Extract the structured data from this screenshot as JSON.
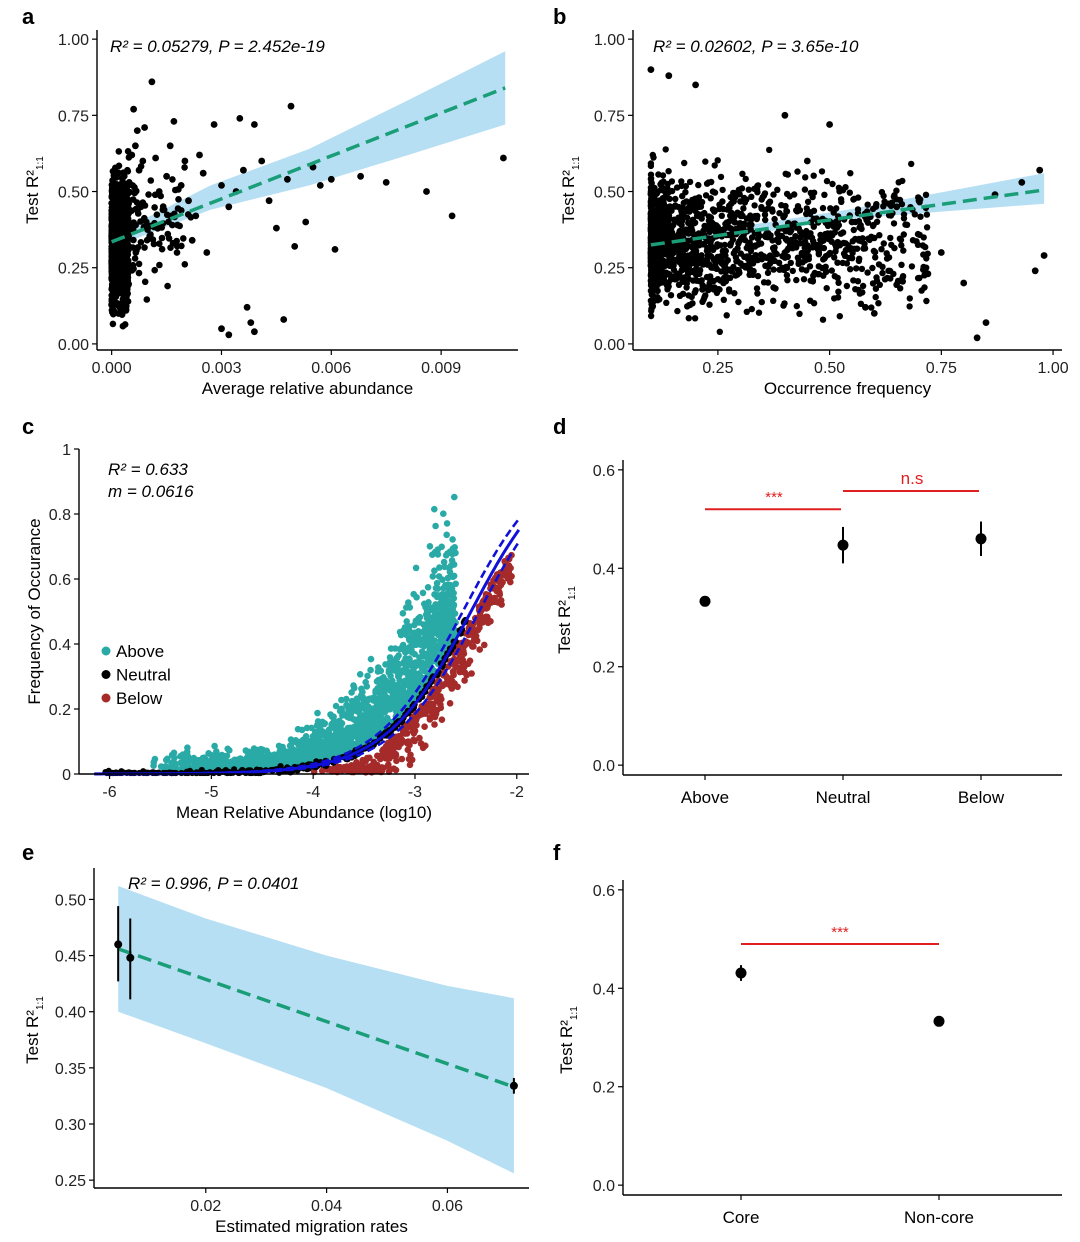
{
  "figure": {
    "panels": {
      "a": {
        "letter": "a",
        "stat_text": "R² = 0.05279, P = 2.452e-19",
        "ylabel_main": "Test R²",
        "ylabel_sub": "1:1"
      },
      "b": {
        "letter": "b",
        "stat_text": "R² = 0.02602, P = 3.65e-10",
        "ylabel_main": "Test R²",
        "ylabel_sub": "1:1"
      },
      "c": {
        "letter": "c",
        "stat_r2": "R² = 0.633",
        "stat_m": "m = 0.0616"
      },
      "d": {
        "letter": "d",
        "ylabel_main": "Test R²",
        "ylabel_sub": "1:1"
      },
      "e": {
        "letter": "e",
        "stat_text": "R² = 0.996, P = 0.0401",
        "ylabel_main": "Test R²",
        "ylabel_sub": "1:1"
      },
      "f": {
        "letter": "f",
        "ylabel_main": "Test R²",
        "ylabel_sub": "1:1"
      }
    },
    "colors": {
      "point": "#000000",
      "fit_line": "#1a9e77",
      "ci_band": "#a9d9f2",
      "above": "#2aaaa6",
      "neutral": "#000000",
      "below": "#a52a2a",
      "neutral_model": "#1010d8",
      "significance": "#e02020"
    }
  },
  "chart_data": [
    {
      "id": "a",
      "type": "scatter",
      "title": "",
      "xlabel": "Average relative abundance",
      "ylabel": "Test R² 1:1",
      "xlim": [
        -0.0004,
        0.0111
      ],
      "ylim": [
        -0.02,
        1.03
      ],
      "xticks": [
        0.0,
        0.003,
        0.006,
        0.009
      ],
      "xtick_labels": [
        "0.000",
        "0.003",
        "0.006",
        "0.009"
      ],
      "yticks": [
        0.0,
        0.25,
        0.5,
        0.75,
        1.0
      ],
      "ytick_labels": [
        "0.00",
        "0.25",
        "0.50",
        "0.75",
        "1.00"
      ],
      "fit": {
        "x": [
          0.0,
          0.01075
        ],
        "y": [
          0.335,
          0.84
        ]
      },
      "ci_band": {
        "x": [
          0.0,
          0.0027,
          0.0054,
          0.0081,
          0.01075
        ],
        "lower": [
          0.315,
          0.44,
          0.52,
          0.62,
          0.72
        ],
        "upper": [
          0.355,
          0.52,
          0.64,
          0.8,
          0.96
        ]
      },
      "points_sample": [
        [
          0.00048,
          0.53
        ],
        [
          0.00055,
          0.62
        ],
        [
          0.0006,
          0.77
        ],
        [
          0.00065,
          0.65
        ],
        [
          0.0007,
          0.7
        ],
        [
          0.00075,
          0.57
        ],
        [
          0.0008,
          0.45
        ],
        [
          0.00085,
          0.6
        ],
        [
          0.0009,
          0.71
        ],
        [
          0.0011,
          0.86
        ],
        [
          0.0012,
          0.61
        ],
        [
          0.0013,
          0.5
        ],
        [
          0.0014,
          0.44
        ],
        [
          0.0015,
          0.55
        ],
        [
          0.0016,
          0.65
        ],
        [
          0.0017,
          0.73
        ],
        [
          0.0018,
          0.39
        ],
        [
          0.0019,
          0.52
        ],
        [
          0.002,
          0.6
        ],
        [
          0.0021,
          0.47
        ],
        [
          0.0022,
          0.34
        ],
        [
          0.0023,
          0.42
        ],
        [
          0.0024,
          0.62
        ],
        [
          0.0025,
          0.56
        ],
        [
          0.0026,
          0.3
        ],
        [
          0.0028,
          0.72
        ],
        [
          0.003,
          0.52
        ],
        [
          0.003,
          0.05
        ],
        [
          0.0032,
          0.45
        ],
        [
          0.0032,
          0.03
        ],
        [
          0.0034,
          0.5
        ],
        [
          0.0035,
          0.74
        ],
        [
          0.0036,
          0.57
        ],
        [
          0.0037,
          0.12
        ],
        [
          0.0038,
          0.07
        ],
        [
          0.0039,
          0.72
        ],
        [
          0.0039,
          0.04
        ],
        [
          0.0041,
          0.6
        ],
        [
          0.0043,
          0.47
        ],
        [
          0.0045,
          0.38
        ],
        [
          0.0047,
          0.08
        ],
        [
          0.0048,
          0.54
        ],
        [
          0.0049,
          0.78
        ],
        [
          0.005,
          0.32
        ],
        [
          0.0053,
          0.4
        ],
        [
          0.0055,
          0.58
        ],
        [
          0.0057,
          0.52
        ],
        [
          0.006,
          0.54
        ],
        [
          0.0061,
          0.31
        ],
        [
          0.0068,
          0.55
        ],
        [
          0.0075,
          0.53
        ],
        [
          0.0086,
          0.5
        ],
        [
          0.0093,
          0.42
        ],
        [
          0.0107,
          0.61
        ]
      ],
      "dense_column": {
        "x_range": [
          0.0,
          0.00045
        ],
        "y_range": [
          0.0,
          0.9
        ]
      }
    },
    {
      "id": "b",
      "type": "scatter",
      "title": "",
      "xlabel": "Occurrence frequency",
      "ylabel": "Test R² 1:1",
      "xlim": [
        0.06,
        1.02
      ],
      "ylim": [
        -0.02,
        1.03
      ],
      "xticks": [
        0.25,
        0.5,
        0.75,
        1.0
      ],
      "xtick_labels": [
        "0.25",
        "0.50",
        "0.75",
        "1.00"
      ],
      "yticks": [
        0.0,
        0.25,
        0.5,
        0.75,
        1.0
      ],
      "ytick_labels": [
        "0.00",
        "0.25",
        "0.50",
        "0.75",
        "1.00"
      ],
      "fit": {
        "x": [
          0.1,
          0.98
        ],
        "y": [
          0.325,
          0.505
        ]
      },
      "ci_band": {
        "x": [
          0.1,
          0.54,
          0.98
        ],
        "lower": [
          0.31,
          0.41,
          0.46
        ],
        "upper": [
          0.34,
          0.44,
          0.56
        ]
      },
      "points_sample": [
        [
          0.1,
          0.9
        ],
        [
          0.14,
          0.88
        ],
        [
          0.2,
          0.85
        ],
        [
          0.4,
          0.75
        ],
        [
          0.45,
          0.6
        ],
        [
          0.5,
          0.72
        ],
        [
          0.55,
          0.4
        ],
        [
          0.58,
          0.12
        ],
        [
          0.6,
          0.1
        ],
        [
          0.65,
          0.45
        ],
        [
          0.7,
          0.47
        ],
        [
          0.72,
          0.23
        ],
        [
          0.75,
          0.3
        ],
        [
          0.8,
          0.2
        ],
        [
          0.83,
          0.02
        ],
        [
          0.85,
          0.07
        ],
        [
          0.87,
          0.49
        ],
        [
          0.93,
          0.53
        ],
        [
          0.96,
          0.24
        ],
        [
          0.97,
          0.57
        ],
        [
          0.98,
          0.29
        ]
      ],
      "cloud": {
        "x_range": [
          0.1,
          0.7
        ],
        "y_range": [
          0.0,
          0.88
        ]
      }
    },
    {
      "id": "c",
      "type": "scatter",
      "title": "",
      "xlabel": "Mean Relative Abundance (log10)",
      "ylabel": "Frequency of Occurance",
      "xlim": [
        -6.3,
        -1.88
      ],
      "ylim": [
        0,
        1.0
      ],
      "xticks": [
        -6,
        -5,
        -4,
        -3,
        -2
      ],
      "xtick_labels": [
        "-6",
        "-5",
        "-4",
        "-3",
        "-2"
      ],
      "yticks": [
        0,
        0.2,
        0.4,
        0.6,
        0.8,
        1
      ],
      "ytick_labels": [
        "0",
        "0.2",
        "0.4",
        "0.6",
        "0.8",
        "1"
      ],
      "legend": [
        "Above",
        "Neutral",
        "Below"
      ],
      "legend_position": "left",
      "neutral_model": {
        "type": "logistic",
        "midpoint_log10": -2.45,
        "slope": 2.35,
        "band_offset": 0.08
      }
    },
    {
      "id": "d",
      "type": "pointrange",
      "title": "",
      "xlabel": "",
      "ylabel": "Test R² 1:1",
      "categories": [
        "Above",
        "Neutral",
        "Below"
      ],
      "values": [
        0.333,
        0.447,
        0.46
      ],
      "lower": [
        0.326,
        0.41,
        0.425
      ],
      "upper": [
        0.34,
        0.484,
        0.495
      ],
      "ylim": [
        -0.02,
        0.62
      ],
      "yticks": [
        0.0,
        0.2,
        0.4,
        0.6
      ],
      "ytick_labels": [
        "0.0",
        "0.2",
        "0.4",
        "0.6"
      ],
      "significance": [
        {
          "from": 0,
          "to": 1,
          "label": "***",
          "y": 0.52
        },
        {
          "from": 1,
          "to": 2,
          "label": "n.s",
          "y": 0.557
        }
      ]
    },
    {
      "id": "e",
      "type": "scatter",
      "title": "",
      "xlabel": "Estimated migration rates",
      "ylabel": "Test R² 1:1",
      "xlim": [
        0.0015,
        0.0735
      ],
      "ylim": [
        0.243,
        0.528
      ],
      "xticks": [
        0.02,
        0.04,
        0.06
      ],
      "xtick_labels": [
        "0.02",
        "0.04",
        "0.06"
      ],
      "yticks": [
        0.25,
        0.3,
        0.35,
        0.4,
        0.45,
        0.5
      ],
      "ytick_labels": [
        "0.25",
        "0.30",
        "0.35",
        "0.40",
        "0.45",
        "0.50"
      ],
      "points": [
        {
          "x": 0.0055,
          "y": 0.46,
          "lower": 0.427,
          "upper": 0.494
        },
        {
          "x": 0.0075,
          "y": 0.448,
          "lower": 0.411,
          "upper": 0.483
        },
        {
          "x": 0.071,
          "y": 0.334,
          "lower": 0.327,
          "upper": 0.341
        }
      ],
      "fit": {
        "x": [
          0.0055,
          0.071
        ],
        "y": [
          0.456,
          0.333
        ]
      },
      "ci_band": {
        "x": [
          0.0055,
          0.02,
          0.04,
          0.06,
          0.071
        ],
        "lower": [
          0.4,
          0.372,
          0.332,
          0.285,
          0.256
        ],
        "upper": [
          0.512,
          0.483,
          0.45,
          0.423,
          0.412
        ]
      }
    },
    {
      "id": "f",
      "type": "pointrange",
      "title": "",
      "xlabel": "",
      "ylabel": "Test R² 1:1",
      "categories": [
        "Core",
        "Non-core"
      ],
      "values": [
        0.431,
        0.333
      ],
      "lower": [
        0.415,
        0.328
      ],
      "upper": [
        0.447,
        0.338
      ],
      "ylim": [
        -0.02,
        0.62
      ],
      "yticks": [
        0.0,
        0.2,
        0.4,
        0.6
      ],
      "ytick_labels": [
        "0.0",
        "0.2",
        "0.4",
        "0.6"
      ],
      "significance": [
        {
          "from": 0,
          "to": 1,
          "label": "***",
          "y": 0.49
        }
      ]
    }
  ]
}
